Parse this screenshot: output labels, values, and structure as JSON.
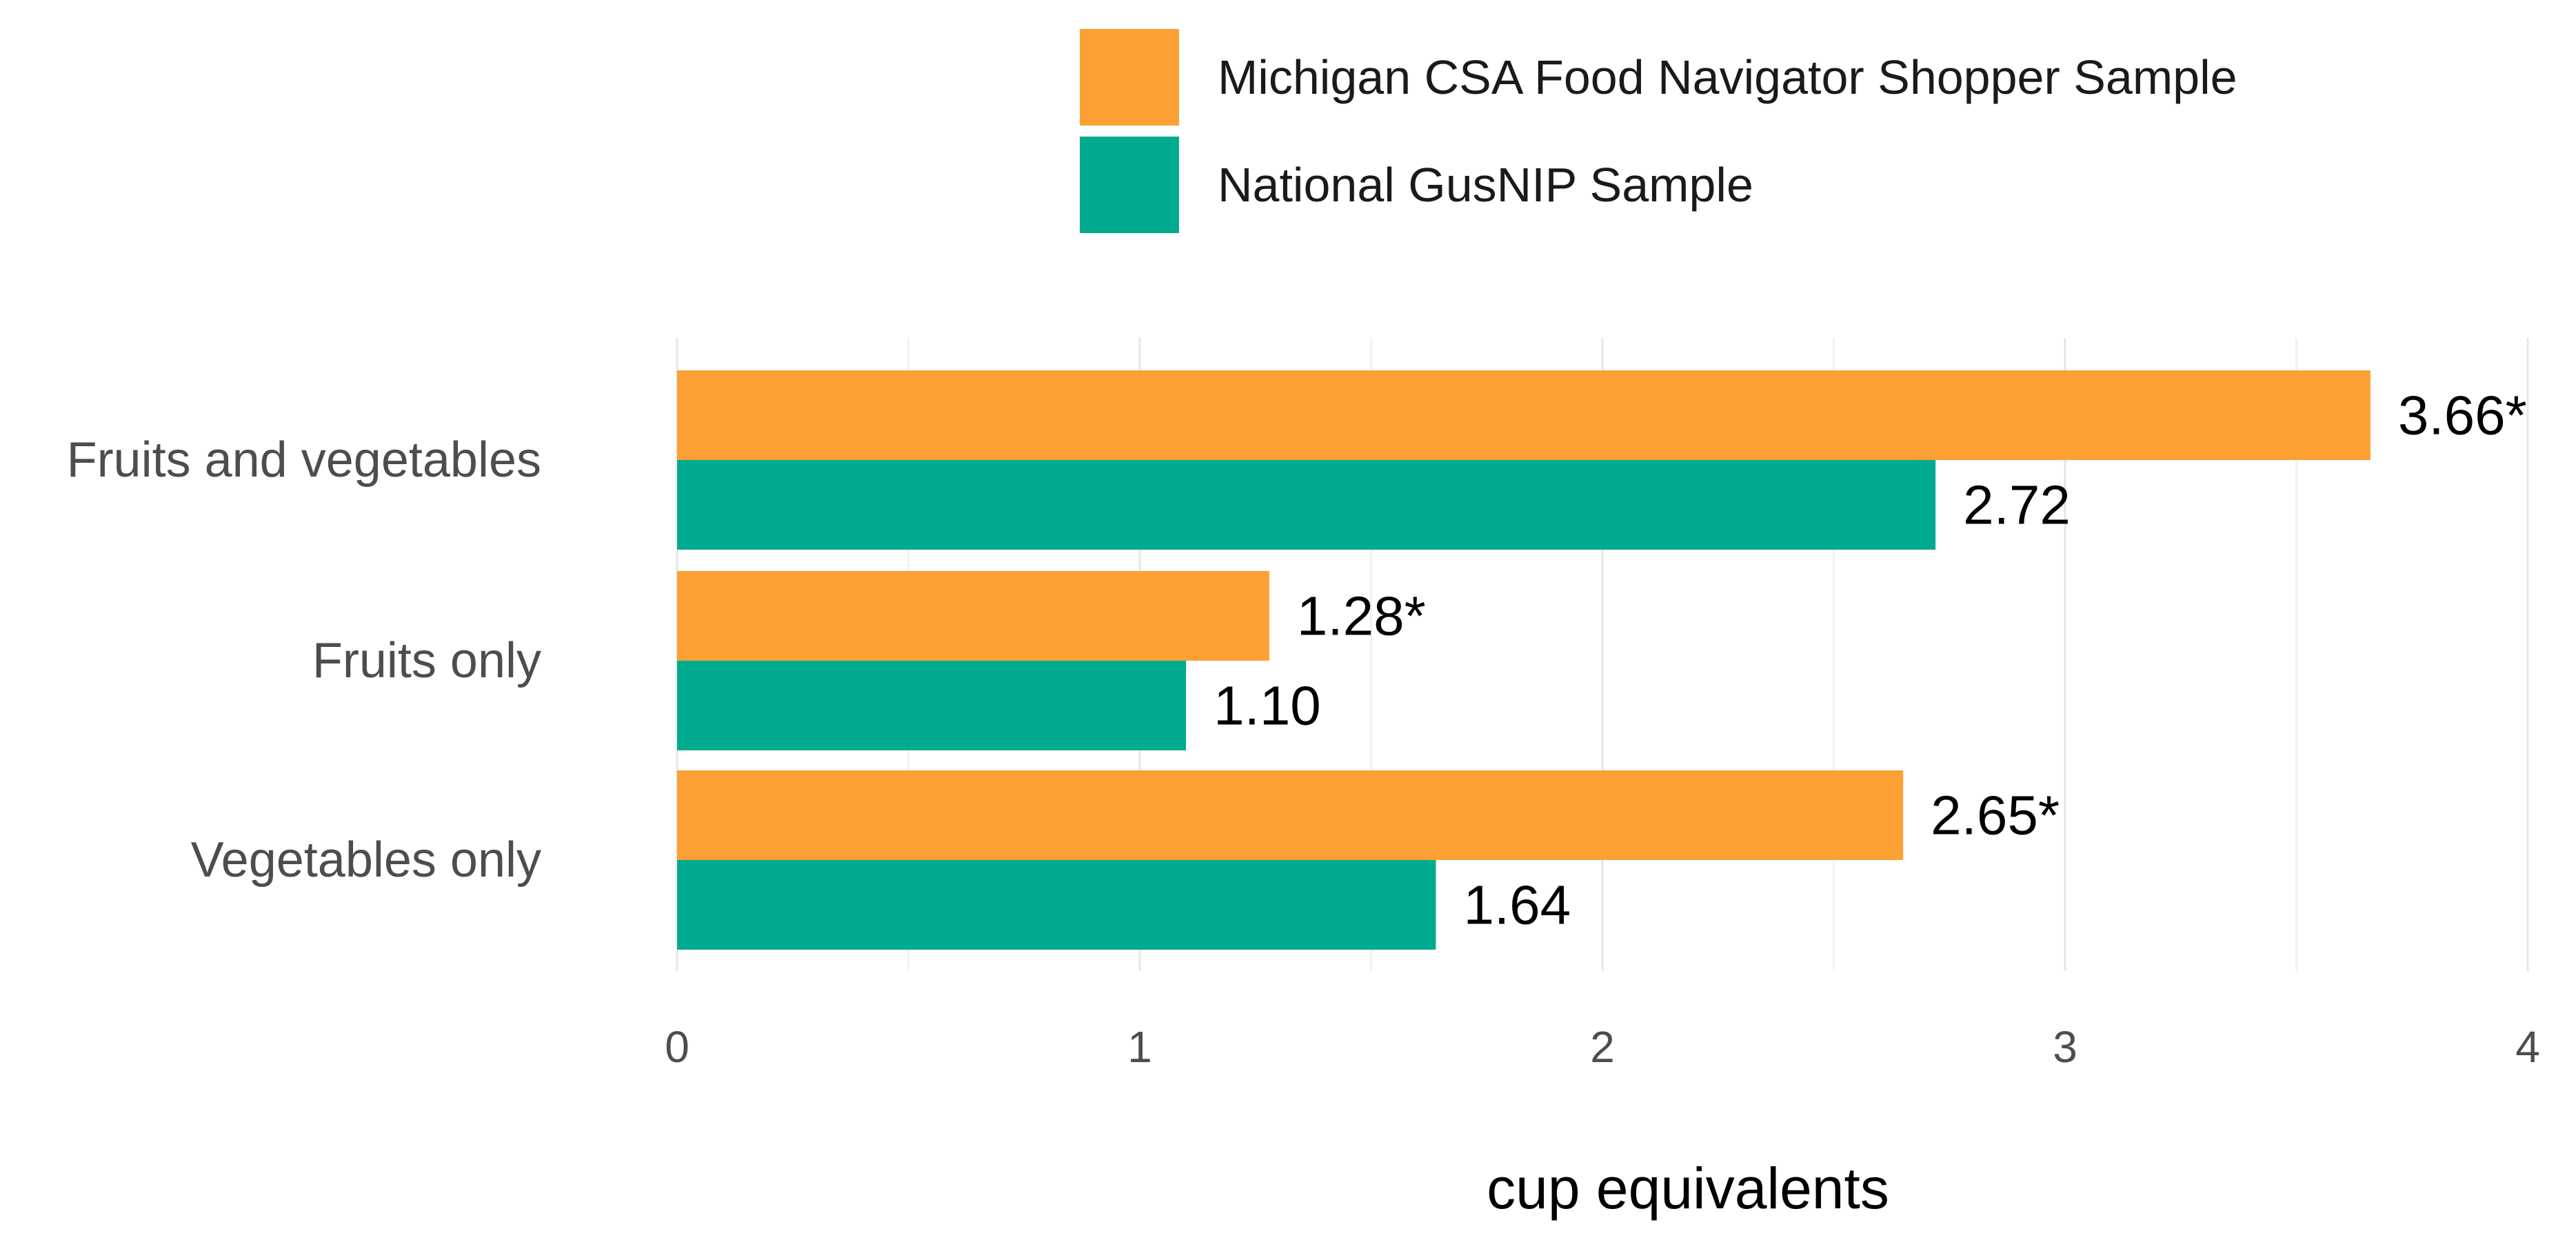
{
  "chart_data": {
    "type": "bar",
    "orientation": "horizontal",
    "categories": [
      "Fruits and vegetables",
      "Fruits only",
      "Vegetables only"
    ],
    "series": [
      {
        "name": "Michigan CSA Food Navigator Shopper Sample",
        "color": "#FDA033",
        "values": [
          3.66,
          1.28,
          2.65
        ],
        "labels": [
          "3.66*",
          "1.28*",
          "2.65*"
        ]
      },
      {
        "name": "National GusNIP Sample",
        "color": "#00AB8F",
        "values": [
          2.72,
          1.1,
          1.64
        ],
        "labels": [
          "2.72",
          "1.10",
          "1.64"
        ]
      }
    ],
    "xlabel": "cup equivalents",
    "ylabel": "",
    "xlim": [
      0,
      4
    ],
    "xticks": [
      0,
      1,
      2,
      3,
      4
    ],
    "tick_labels": [
      "0",
      "1",
      "2",
      "3",
      "4"
    ],
    "grid": true,
    "legend_position": "top"
  }
}
